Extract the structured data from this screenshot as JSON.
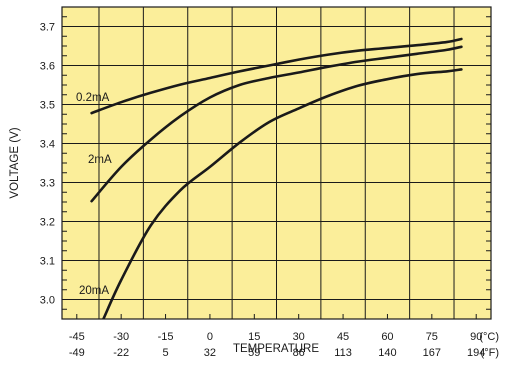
{
  "chart_data": {
    "type": "line",
    "xlabel": "TEMPERATURE",
    "ylabel": "VOLTAGE (V)",
    "xlim": [
      -50,
      95
    ],
    "ylim": [
      2.95,
      3.75
    ],
    "x_ticks_c": [
      "-45",
      "-30",
      "-15",
      "0",
      "15",
      "30",
      "45",
      "60",
      "75",
      "90"
    ],
    "x_ticks_f": [
      "-49",
      "-22",
      "5",
      "32",
      "59",
      "86",
      "113",
      "140",
      "167",
      "194"
    ],
    "x_unit_c": "(°C)",
    "x_unit_f": "(°F)",
    "y_ticks": [
      "3.0",
      "3.1",
      "3.2",
      "3.3",
      "3.4",
      "3.5",
      "3.6",
      "3.7"
    ],
    "grid": true,
    "colors": {
      "plot_background": "#fbee9a",
      "grid": "#1a1a1a",
      "line": "#1a1a1a"
    },
    "series": [
      {
        "name": "0.2mA",
        "x": [
          -40,
          -30,
          -20,
          -10,
          0,
          10,
          20,
          30,
          40,
          50,
          60,
          70,
          80,
          85
        ],
        "y": [
          3.478,
          3.506,
          3.53,
          3.551,
          3.568,
          3.585,
          3.6,
          3.615,
          3.628,
          3.638,
          3.645,
          3.652,
          3.66,
          3.668
        ]
      },
      {
        "name": "2mA",
        "x": [
          -40,
          -30,
          -20,
          -10,
          0,
          10,
          20,
          30,
          40,
          50,
          60,
          70,
          80,
          85
        ],
        "y": [
          3.252,
          3.34,
          3.41,
          3.47,
          3.518,
          3.55,
          3.568,
          3.582,
          3.597,
          3.61,
          3.62,
          3.63,
          3.64,
          3.648
        ]
      },
      {
        "name": "20mA",
        "x": [
          -36,
          -30,
          -20,
          -10,
          0,
          10,
          20,
          30,
          40,
          50,
          60,
          70,
          80,
          85
        ],
        "y": [
          2.95,
          3.05,
          3.19,
          3.28,
          3.34,
          3.402,
          3.455,
          3.49,
          3.522,
          3.548,
          3.565,
          3.578,
          3.585,
          3.59
        ]
      }
    ]
  }
}
